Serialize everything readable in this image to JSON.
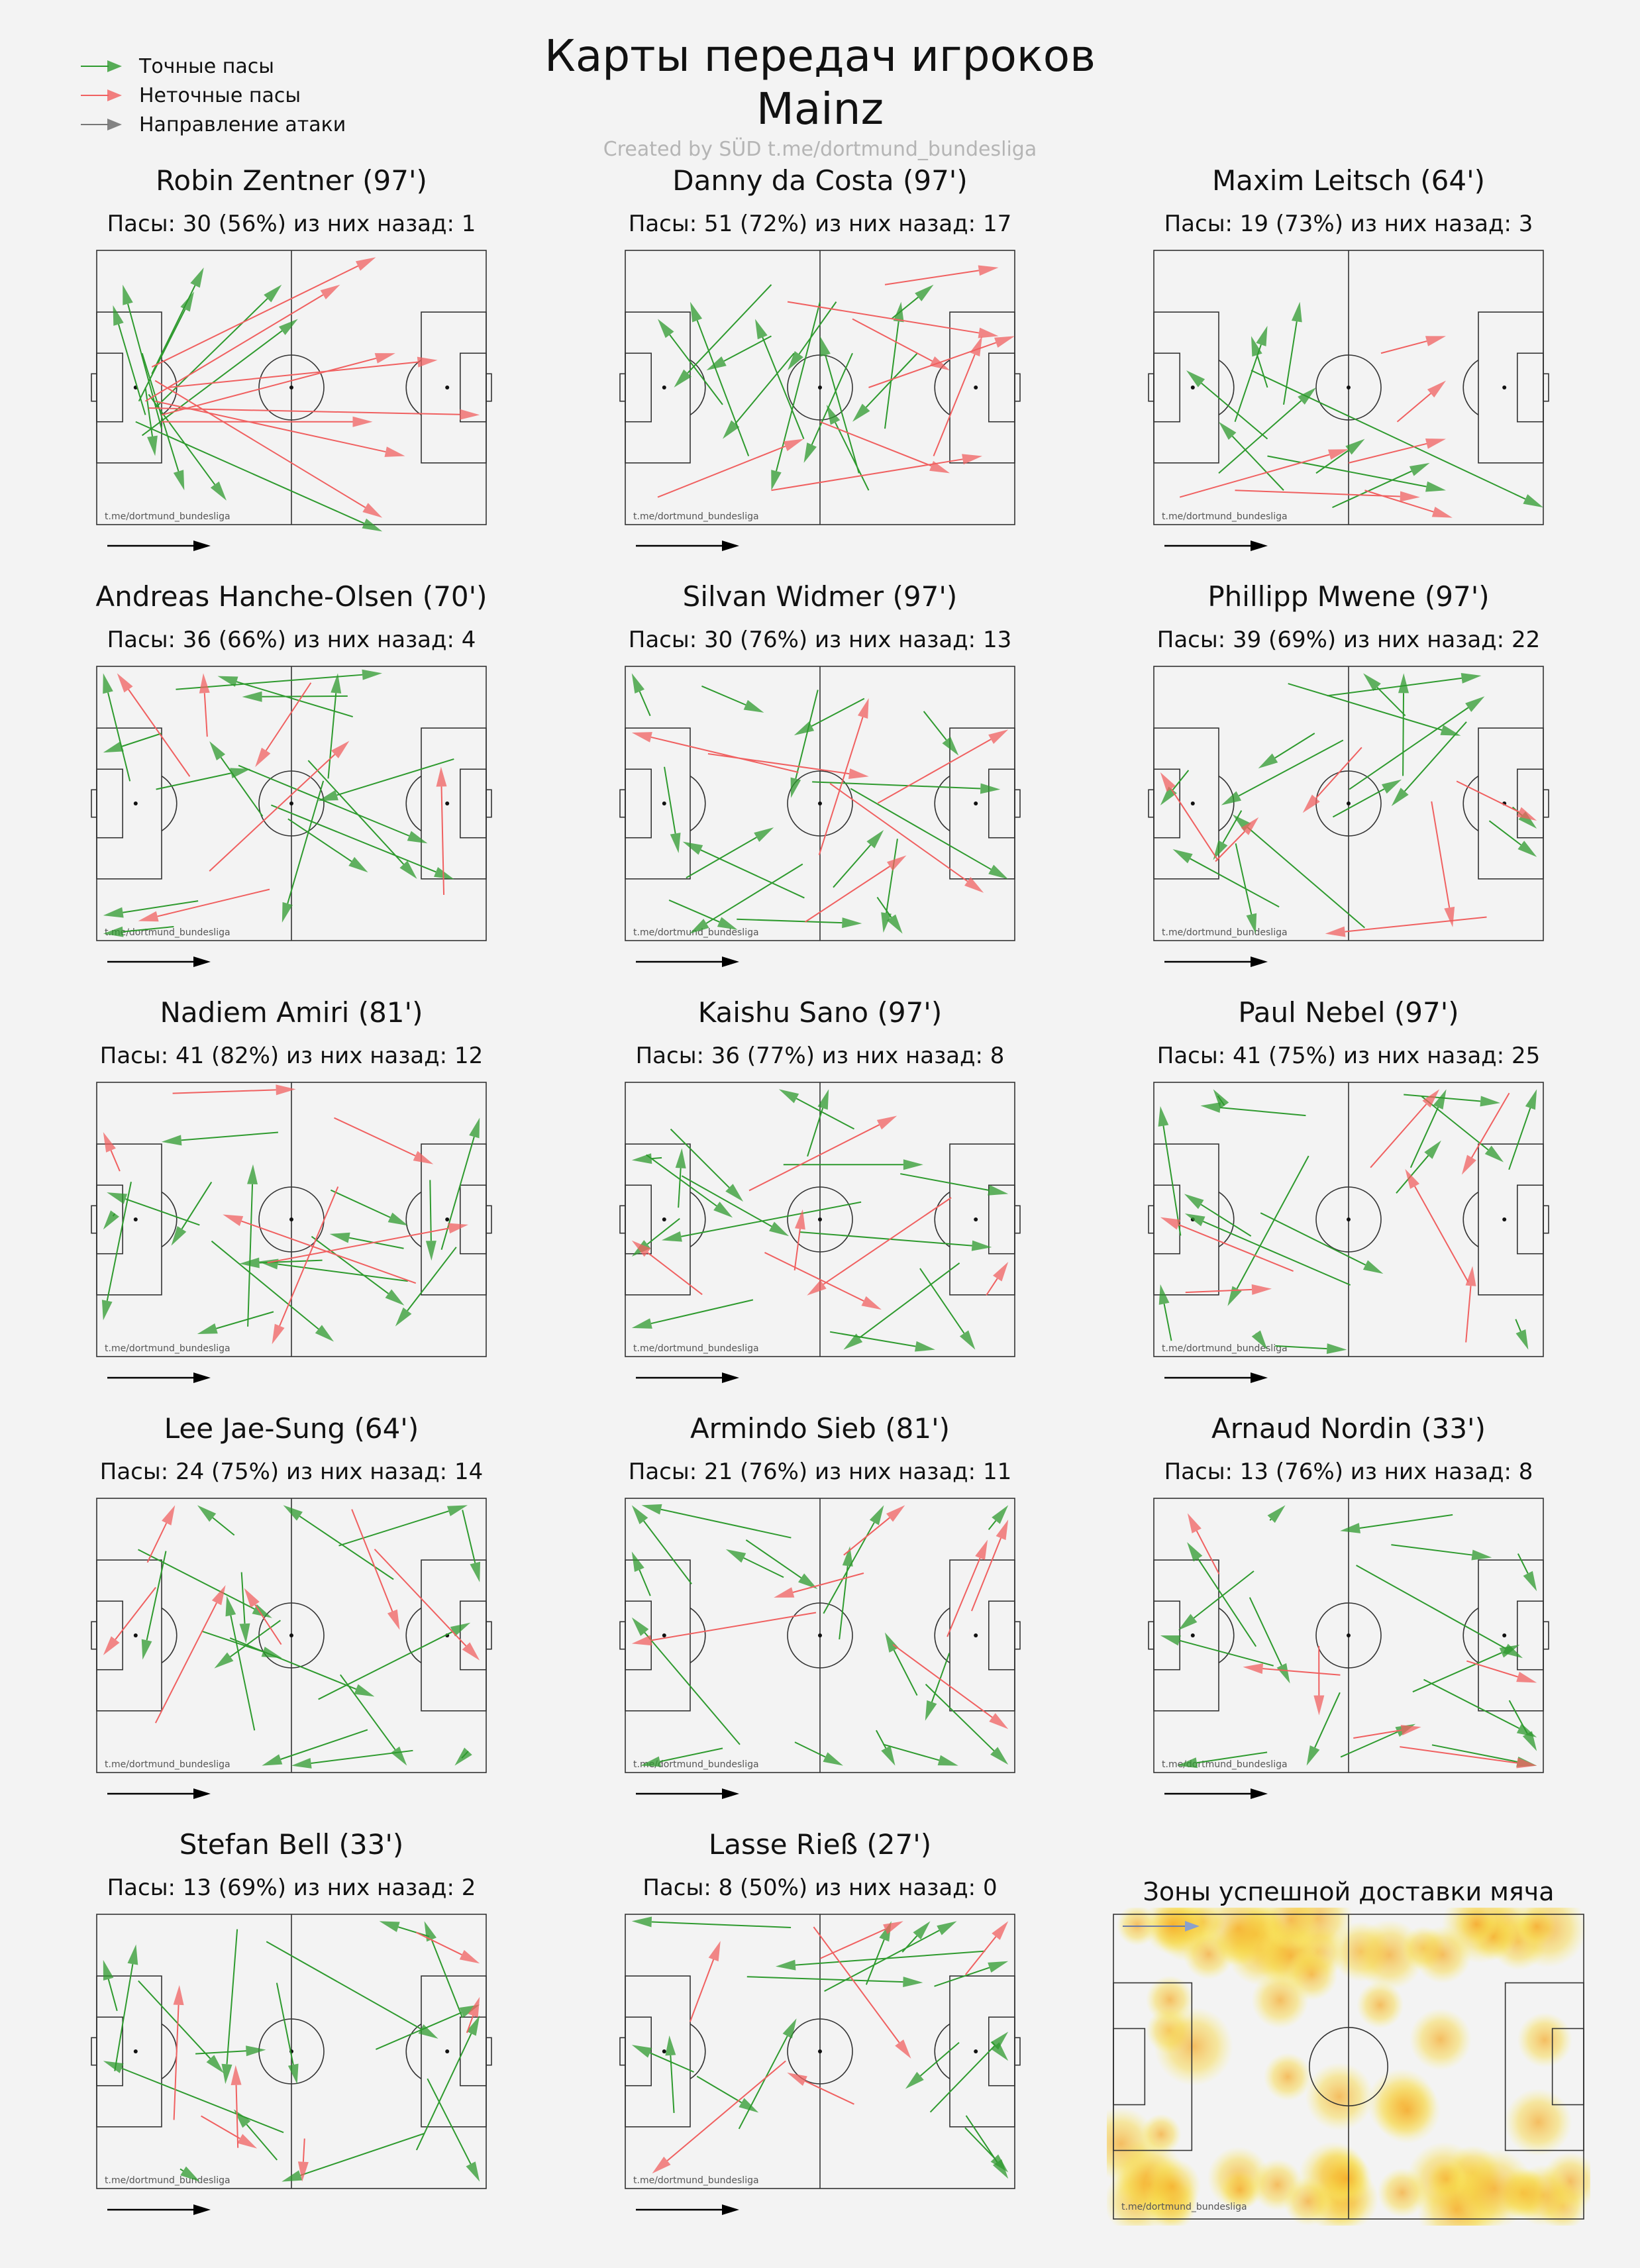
{
  "header": {
    "title_line1": "Карты передач игроков",
    "title_line2": "Mainz",
    "credit": "Created by SÜD t.me/dortmund_bundesliga"
  },
  "legend": {
    "accurate": "Точные пасы",
    "inaccurate": "Неточные пасы",
    "attack_direction": "Направление атаки"
  },
  "colors": {
    "accurate": "#2e9a2e",
    "inaccurate": "#f06060",
    "direction": "#777777",
    "pitch_line": "#333333"
  },
  "watermark": "t.me/dortmund_bundesliga",
  "players": [
    {
      "name": "Robin Zentner (97')",
      "stats": "Пасы: 30 (56%) из них назад: 1"
    },
    {
      "name": "Danny da Costa (97')",
      "stats": "Пасы: 51 (72%) из них назад: 17"
    },
    {
      "name": "Maxim Leitsch (64')",
      "stats": "Пасы: 19 (73%) из них назад: 3"
    },
    {
      "name": "Andreas Hanche-Olsen (70')",
      "stats": "Пасы: 36 (66%) из них назад: 4"
    },
    {
      "name": "Silvan Widmer (97')",
      "stats": "Пасы: 30 (76%) из них назад: 13"
    },
    {
      "name": "Phillipp Mwene (97')",
      "stats": "Пасы: 39 (69%) из них назад: 22"
    },
    {
      "name": "Nadiem Amiri (81')",
      "stats": "Пасы: 41 (82%) из них назад: 12"
    },
    {
      "name": "Kaishu Sano (97')",
      "stats": "Пасы: 36 (77%) из них назад: 8"
    },
    {
      "name": "Paul Nebel (97')",
      "stats": "Пасы: 41 (75%) из них назад: 25"
    },
    {
      "name": "Lee Jae-Sung (64')",
      "stats": "Пасы: 24 (75%) из них назад: 14"
    },
    {
      "name": "Armindo Sieb (81')",
      "stats": "Пасы: 21 (76%) из них назад: 11"
    },
    {
      "name": "Arnaud Nordin (33')",
      "stats": "Пасы: 13 (76%) из них назад: 8"
    },
    {
      "name": "Stefan Bell (33')",
      "stats": "Пасы: 13 (69%) из них назад: 2"
    },
    {
      "name": "Lasse Rieß (27')",
      "stats": "Пасы: 8 (50%) из них назад: 0"
    }
  ],
  "heatmap": {
    "title": "Зоны успешной доставки мяча"
  },
  "chart_data": {
    "type": "pass_map",
    "pitch": {
      "length": 120,
      "width": 80
    },
    "passes": [
      {
        "player": "Robin Zentner (97')",
        "accurate": [
          [
            15,
            48,
            5,
            16
          ],
          [
            16,
            42,
            40,
            73
          ],
          [
            17,
            36,
            33,
            5
          ],
          [
            14,
            30,
            27,
            70
          ],
          [
            12,
            50,
            88,
            82
          ],
          [
            18,
            46,
            57,
            10
          ],
          [
            13,
            44,
            30,
            12
          ],
          [
            15,
            40,
            18,
            60
          ],
          [
            20,
            52,
            8,
            10
          ],
          [
            14,
            54,
            62,
            20
          ]
        ],
        "inaccurate": [
          [
            18,
            44,
            95,
            60
          ],
          [
            16,
            46,
            118,
            48
          ],
          [
            20,
            50,
            85,
            50
          ],
          [
            22,
            40,
            105,
            32
          ],
          [
            18,
            38,
            88,
            78
          ],
          [
            15,
            44,
            75,
            10
          ],
          [
            20,
            48,
            92,
            30
          ],
          [
            17,
            34,
            86,
            2
          ]
        ]
      },
      {
        "player": "Danny da Costa (97')",
        "accurate": [
          [
            45,
            10,
            15,
            40
          ],
          [
            38,
            60,
            20,
            15
          ],
          [
            70,
            30,
            55,
            62
          ],
          [
            80,
            52,
            85,
            15
          ],
          [
            60,
            15,
            45,
            70
          ],
          [
            75,
            70,
            62,
            45
          ],
          [
            52,
            30,
            30,
            55
          ],
          [
            90,
            30,
            70,
            50
          ],
          [
            30,
            45,
            10,
            20
          ],
          [
            65,
            15,
            50,
            35
          ],
          [
            82,
            20,
            95,
            10
          ],
          [
            45,
            25,
            25,
            35
          ],
          [
            55,
            55,
            40,
            20
          ],
          [
            72,
            65,
            60,
            25
          ]
        ],
        "inaccurate": [
          [
            10,
            72,
            55,
            55
          ],
          [
            45,
            70,
            110,
            60
          ],
          [
            50,
            15,
            115,
            25
          ],
          [
            80,
            10,
            115,
            5
          ],
          [
            75,
            40,
            120,
            25
          ],
          [
            60,
            50,
            100,
            65
          ],
          [
            95,
            60,
            110,
            25
          ],
          [
            70,
            20,
            100,
            35
          ]
        ]
      },
      {
        "player": "Maxim Leitsch (64')",
        "accurate": [
          [
            30,
            35,
            120,
            75
          ],
          [
            35,
            60,
            90,
            70
          ],
          [
            40,
            45,
            45,
            15
          ],
          [
            35,
            55,
            10,
            35
          ],
          [
            55,
            75,
            85,
            62
          ],
          [
            20,
            65,
            50,
            40
          ],
          [
            25,
            50,
            35,
            22
          ],
          [
            40,
            70,
            20,
            50
          ],
          [
            50,
            65,
            65,
            55
          ],
          [
            35,
            40,
            30,
            25
          ]
        ],
        "inaccurate": [
          [
            8,
            72,
            60,
            58
          ],
          [
            25,
            70,
            82,
            72
          ],
          [
            65,
            70,
            92,
            78
          ],
          [
            75,
            50,
            90,
            38
          ],
          [
            70,
            30,
            90,
            25
          ],
          [
            60,
            62,
            90,
            55
          ]
        ]
      }
    ]
  }
}
